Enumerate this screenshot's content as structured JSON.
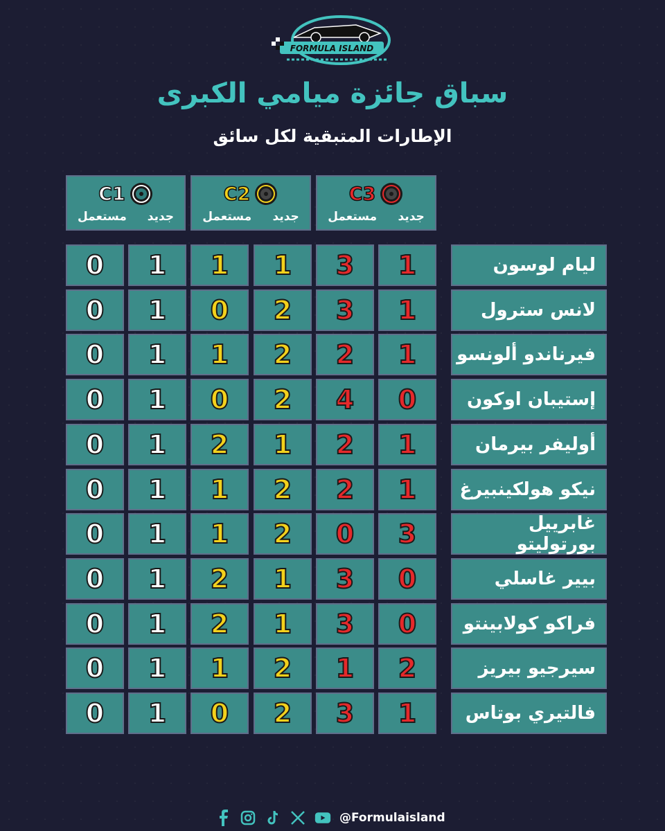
{
  "brand": {
    "logo_text": "FORMULA ISLAND"
  },
  "title": "سباق جائزة ميامي الكبرى",
  "subtitle": "الإطارات المتبقية لكل سائق",
  "compounds": [
    {
      "label": "C3",
      "color": "#e5292b",
      "new_label": "جديد",
      "used_label": "مستعمل"
    },
    {
      "label": "C2",
      "color": "#f3d11c",
      "new_label": "جديد",
      "used_label": "مستعمل"
    },
    {
      "label": "C1",
      "color": "#ffffff",
      "new_label": "جديد",
      "used_label": "مستعمل"
    }
  ],
  "drivers": [
    {
      "name": "ليام لوسون",
      "c3_new": "1",
      "c3_used": "3",
      "c2_new": "1",
      "c2_used": "1",
      "c1_new": "1",
      "c1_used": "0"
    },
    {
      "name": "لانس سترول",
      "c3_new": "1",
      "c3_used": "3",
      "c2_new": "2",
      "c2_used": "0",
      "c1_new": "1",
      "c1_used": "0"
    },
    {
      "name": "فيرناندو ألونسو",
      "c3_new": "1",
      "c3_used": "2",
      "c2_new": "2",
      "c2_used": "1",
      "c1_new": "1",
      "c1_used": "0"
    },
    {
      "name": "إستيبان اوكون",
      "c3_new": "0",
      "c3_used": "4",
      "c2_new": "2",
      "c2_used": "0",
      "c1_new": "1",
      "c1_used": "0"
    },
    {
      "name": "أوليفر بيرمان",
      "c3_new": "1",
      "c3_used": "2",
      "c2_new": "1",
      "c2_used": "2",
      "c1_new": "1",
      "c1_used": "0"
    },
    {
      "name": "نيكو هولكينبيرغ",
      "c3_new": "1",
      "c3_used": "2",
      "c2_new": "2",
      "c2_used": "1",
      "c1_new": "1",
      "c1_used": "0"
    },
    {
      "name": "غابرييل بورتوليتو",
      "c3_new": "3",
      "c3_used": "0",
      "c2_new": "2",
      "c2_used": "1",
      "c1_new": "1",
      "c1_used": "0"
    },
    {
      "name": "بيير غاسلي",
      "c3_new": "0",
      "c3_used": "3",
      "c2_new": "1",
      "c2_used": "2",
      "c1_new": "1",
      "c1_used": "0"
    },
    {
      "name": "فراكو كولابينتو",
      "c3_new": "0",
      "c3_used": "3",
      "c2_new": "1",
      "c2_used": "2",
      "c1_new": "1",
      "c1_used": "0"
    },
    {
      "name": "سيرجيو بيريز",
      "c3_new": "2",
      "c3_used": "1",
      "c2_new": "2",
      "c2_used": "1",
      "c1_new": "1",
      "c1_used": "0"
    },
    {
      "name": "فالتيري بوتاس",
      "c3_new": "1",
      "c3_used": "3",
      "c2_new": "2",
      "c2_used": "0",
      "c1_new": "1",
      "c1_used": "0"
    }
  ],
  "footer": {
    "handle": "@Formulaisland",
    "icons": [
      "facebook-icon",
      "instagram-icon",
      "tiktok-icon",
      "x-icon",
      "youtube-icon"
    ]
  }
}
